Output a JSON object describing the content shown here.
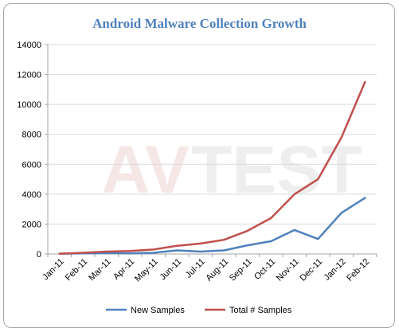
{
  "chart_data": {
    "type": "line",
    "title": "Android Malware Collection Growth",
    "categories": [
      "Jan-11",
      "Feb-11",
      "Mar-11",
      "Apr-11",
      "May-11",
      "Jun-11",
      "Jul-11",
      "Aug-11",
      "Sep-11",
      "Oct-11",
      "Nov-11",
      "Dec-11",
      "Jan-12",
      "Feb-12"
    ],
    "series": [
      {
        "name": "New Samples",
        "color": "#4f81bd",
        "values": [
          20,
          40,
          60,
          40,
          80,
          240,
          160,
          240,
          580,
          850,
          1600,
          1000,
          2750,
          3750
        ]
      },
      {
        "name": "Total # Samples",
        "color": "#c0504d",
        "values": [
          20,
          80,
          160,
          200,
          300,
          550,
          700,
          950,
          1550,
          2400,
          4000,
          5000,
          7800,
          11500
        ]
      }
    ],
    "ylim": [
      0,
      14000
    ],
    "yticks": [
      0,
      2000,
      4000,
      6000,
      8000,
      10000,
      12000,
      14000
    ],
    "grid": "horizontal",
    "legend": "bottom"
  },
  "watermark": {
    "left": "AV",
    "right": "TEST"
  }
}
